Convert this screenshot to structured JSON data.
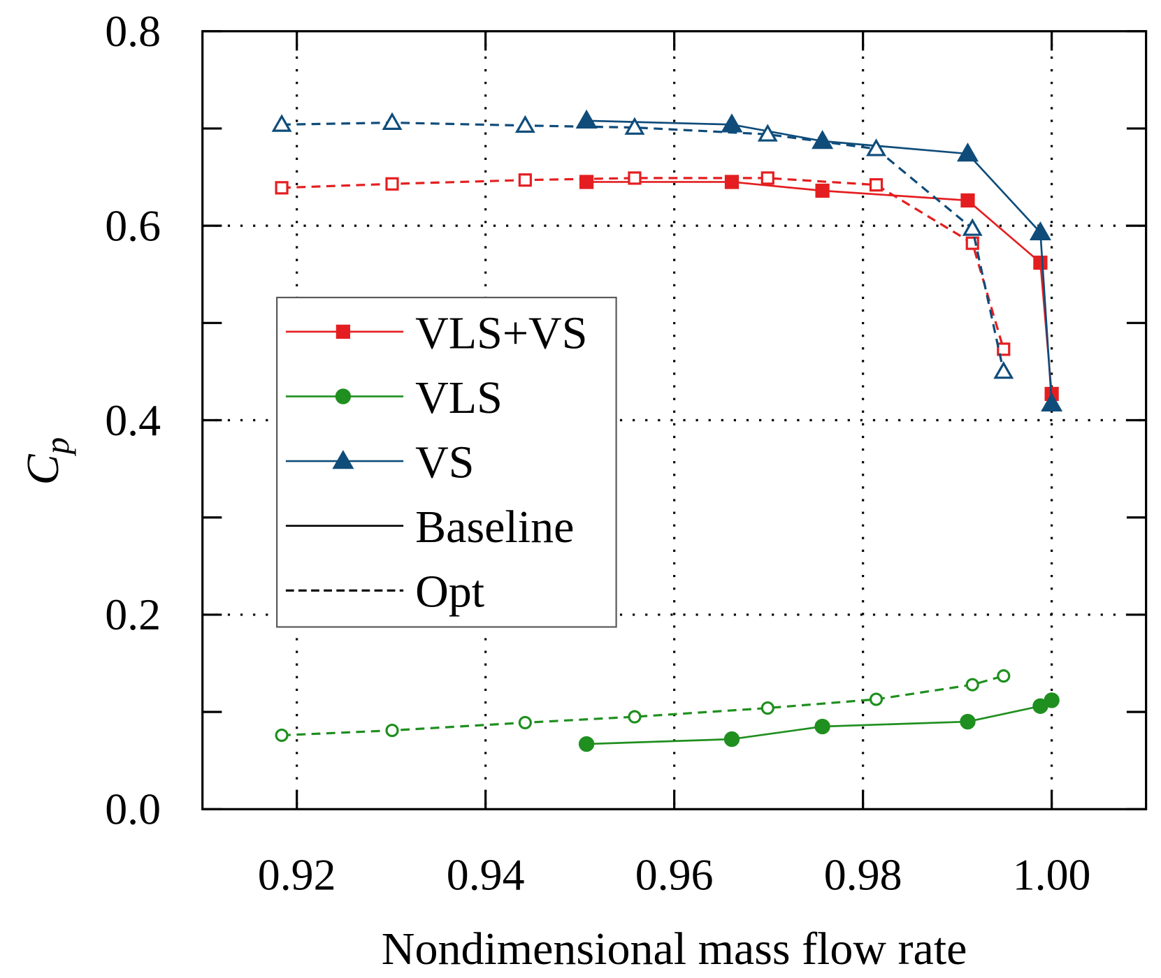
{
  "chart_data": {
    "type": "line",
    "title": "",
    "xlabel": "Nondimensional mass flow rate",
    "ylabel": "C",
    "ylabel_sub": "p",
    "xlim": [
      0.91,
      1.01
    ],
    "ylim": [
      0.0,
      0.8
    ],
    "xticks": [
      "0.92",
      "0.94",
      "0.96",
      "0.98",
      "1.00"
    ],
    "xtick_values": [
      0.92,
      0.94,
      0.96,
      0.98,
      1.0
    ],
    "yticks": [
      "0.0",
      "0.2",
      "0.4",
      "0.6",
      "0.8"
    ],
    "ytick_values": [
      0.0,
      0.2,
      0.4,
      0.6,
      0.8
    ],
    "grid": true,
    "legend_position": "center-left",
    "legend": [
      "VLS+VS",
      "VLS",
      "VS",
      "Baseline",
      "Opt"
    ],
    "colors": {
      "VLS+VS": "#e41e20",
      "VLS": "#1f8f1f",
      "VS": "#0f4c7a",
      "Baseline": "#000000",
      "Opt": "#000000"
    },
    "series": [
      {
        "name": "VLS+VS Baseline",
        "group": "VLS+VS",
        "style": "solid",
        "marker": "square-filled",
        "x": [
          0.9507,
          0.9661,
          0.9757,
          0.9911,
          0.9988,
          1.0
        ],
        "y": [
          0.645,
          0.645,
          0.636,
          0.626,
          0.562,
          0.427
        ]
      },
      {
        "name": "VLS+VS Opt",
        "group": "VLS+VS",
        "style": "dashed",
        "marker": "square-open",
        "x": [
          0.9184,
          0.9301,
          0.9442,
          0.9558,
          0.9699,
          0.9814,
          0.9916,
          0.9949
        ],
        "y": [
          0.639,
          0.643,
          0.647,
          0.649,
          0.649,
          0.642,
          0.582,
          0.473
        ]
      },
      {
        "name": "VS Baseline",
        "group": "VS",
        "style": "solid",
        "marker": "triangle-filled",
        "x": [
          0.9507,
          0.9661,
          0.9757,
          0.9911,
          0.9988,
          1.0
        ],
        "y": [
          0.708,
          0.704,
          0.687,
          0.674,
          0.593,
          0.417
        ]
      },
      {
        "name": "VS Opt",
        "group": "VS",
        "style": "dashed",
        "marker": "triangle-open",
        "x": [
          0.9184,
          0.9301,
          0.9442,
          0.9558,
          0.9699,
          0.9814,
          0.9916,
          0.9949
        ],
        "y": [
          0.704,
          0.706,
          0.703,
          0.701,
          0.694,
          0.679,
          0.597,
          0.45
        ]
      },
      {
        "name": "VLS Baseline",
        "group": "VLS",
        "style": "solid",
        "marker": "circle-filled",
        "x": [
          0.9507,
          0.9661,
          0.9757,
          0.9911,
          0.9988,
          1.0
        ],
        "y": [
          0.067,
          0.072,
          0.085,
          0.09,
          0.106,
          0.112
        ]
      },
      {
        "name": "VLS Opt",
        "group": "VLS",
        "style": "dashed",
        "marker": "circle-open",
        "x": [
          0.9184,
          0.9301,
          0.9442,
          0.9558,
          0.9699,
          0.9814,
          0.9916,
          0.9949
        ],
        "y": [
          0.076,
          0.081,
          0.089,
          0.095,
          0.104,
          0.113,
          0.128,
          0.137
        ]
      }
    ]
  }
}
